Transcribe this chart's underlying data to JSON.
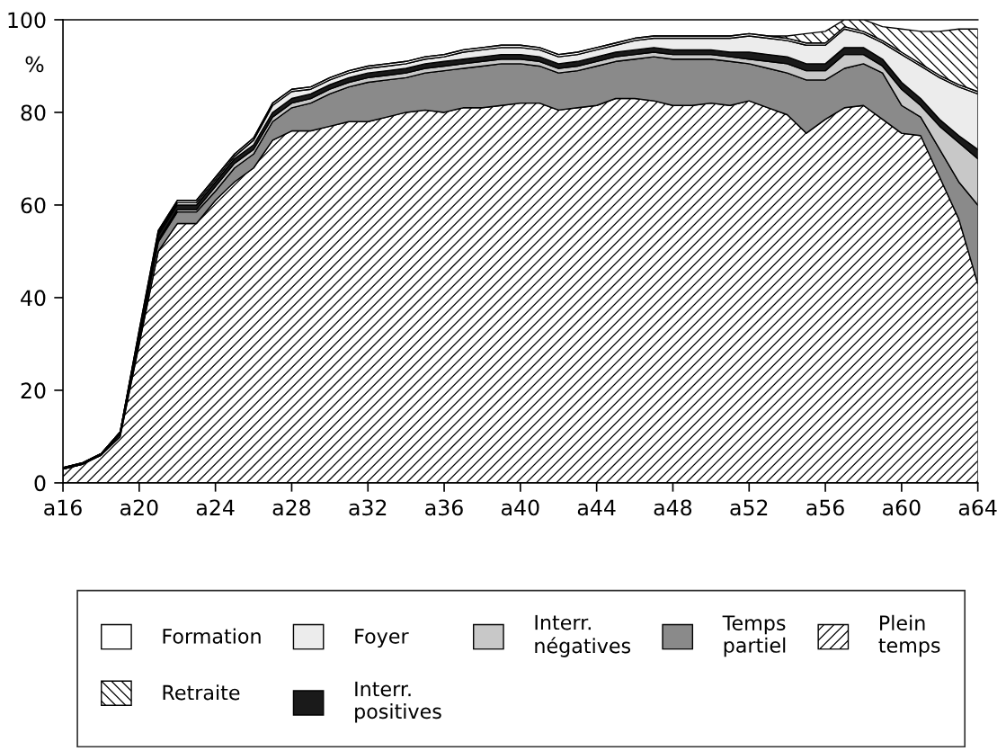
{
  "chart_data": {
    "type": "area",
    "stacked": true,
    "ylabel": "%",
    "categories": [
      "a16",
      null,
      null,
      null,
      "a20",
      null,
      null,
      null,
      "a24",
      null,
      null,
      null,
      "a28",
      null,
      null,
      null,
      "a32",
      null,
      null,
      null,
      "a36",
      null,
      null,
      null,
      "a40",
      null,
      null,
      null,
      "a44",
      null,
      null,
      null,
      "a48",
      null,
      null,
      null,
      "a52",
      null,
      null,
      null,
      "a56",
      null,
      null,
      null,
      "a60",
      null,
      null,
      null,
      "a64"
    ],
    "ylim": [
      0,
      100
    ],
    "yticks": [
      0,
      20,
      40,
      60,
      80,
      100
    ],
    "grid": false,
    "legend": "bottom",
    "series": [
      {
        "name": "Plein\ntemps",
        "color": "#000000",
        "values": [
          3,
          4,
          6,
          10,
          30,
          50,
          56,
          56,
          61,
          65,
          68,
          74,
          76,
          76,
          77,
          78,
          78,
          79,
          80,
          80.5,
          80,
          81,
          81,
          81.5,
          82,
          82,
          80.5,
          81,
          81.5,
          83,
          83,
          82.5,
          81.5,
          81.5,
          82,
          81.5,
          82.5,
          81,
          79.5,
          75.5,
          78.5,
          81,
          81.5,
          78.5,
          75.5,
          75,
          66,
          57,
          43
        ]
      },
      {
        "name": "Temps\npartiel",
        "color": "#8a8a8a",
        "values": [
          0,
          0,
          0,
          0.5,
          1,
          2,
          2.5,
          2.5,
          2,
          3,
          3,
          4,
          5,
          6,
          7,
          7.5,
          8.5,
          8,
          7.5,
          8,
          9,
          8.5,
          9,
          9,
          8.5,
          8,
          8,
          8,
          8.5,
          8,
          8.5,
          9.5,
          10,
          10,
          9.5,
          9.5,
          8,
          8.5,
          9,
          11.5,
          8.5,
          8.5,
          9,
          10,
          6,
          4,
          6,
          8,
          17
        ]
      },
      {
        "name": "Interr.\nnégatives",
        "color": "#c8c8c8",
        "values": [
          0,
          0,
          0,
          0,
          0.5,
          0.5,
          0.5,
          0.5,
          1,
          1,
          1,
          1,
          1,
          1,
          1,
          1,
          1,
          1,
          1,
          1,
          1,
          1,
          1,
          1,
          1,
          1,
          1,
          1,
          1,
          1,
          1,
          1,
          1,
          1,
          1,
          1,
          1,
          1.5,
          2,
          2,
          2,
          3,
          2,
          1.5,
          3.5,
          2.5,
          5,
          8.5,
          10
        ]
      },
      {
        "name": "Interr.\npositives",
        "color": "#1a1a1a",
        "values": [
          0.3,
          0.3,
          0.3,
          0.5,
          1,
          1,
          1,
          1,
          1,
          1,
          1,
          1,
          1,
          1,
          1,
          1,
          1,
          1,
          1,
          1,
          1,
          1,
          1,
          1,
          1,
          1,
          1,
          1,
          1,
          1,
          1,
          1,
          1,
          1,
          1,
          1,
          1.5,
          1.5,
          1.5,
          1.5,
          1.5,
          1.5,
          1.5,
          1.5,
          1.5,
          1.5,
          1.5,
          1.5,
          2
        ]
      },
      {
        "name": "Foyer",
        "color": "#ececec",
        "values": [
          0,
          0,
          0,
          0,
          0,
          0.5,
          0.5,
          0.5,
          0.5,
          0.5,
          1,
          1.5,
          1.5,
          1,
          1,
          1,
          1,
          1,
          1,
          1,
          1,
          1.5,
          1.5,
          1.5,
          1.5,
          1.5,
          1.5,
          1.5,
          1.5,
          1.5,
          2,
          2,
          2.5,
          2.5,
          2.5,
          3,
          3.5,
          3.5,
          3.5,
          4,
          4,
          4,
          3,
          3.5,
          6,
          7,
          9,
          10.5,
          12
        ]
      },
      {
        "name": "Formation",
        "color": "#ffffff",
        "values": [
          0,
          0,
          0,
          0,
          0.5,
          0.5,
          0.5,
          0.5,
          0.5,
          0.5,
          0.5,
          0.5,
          0.5,
          0.5,
          0.5,
          0.5,
          0.5,
          0.5,
          0.5,
          0.5,
          0.5,
          0.5,
          0.5,
          0.5,
          0.5,
          0.5,
          0.5,
          0.5,
          0.5,
          0.5,
          0.5,
          0.5,
          0.5,
          0.5,
          0.5,
          0.5,
          0.5,
          0.5,
          0.5,
          0.5,
          0.5,
          0.5,
          0.5,
          0.5,
          0.5,
          0.5,
          0.5,
          0.5,
          0.5
        ]
      },
      {
        "name": "Retraite",
        "color": "#000000",
        "values": [
          0,
          0,
          0,
          0,
          0,
          0,
          0,
          0,
          0,
          0,
          0,
          0,
          0,
          0,
          0,
          0,
          0,
          0,
          0,
          0,
          0,
          0,
          0,
          0,
          0,
          0,
          0,
          0,
          0,
          0,
          0,
          0,
          0,
          0,
          0,
          0,
          0,
          0,
          0.5,
          2,
          2.5,
          1.5,
          2.5,
          3,
          5,
          7,
          9.5,
          12,
          13.5
        ]
      }
    ]
  }
}
